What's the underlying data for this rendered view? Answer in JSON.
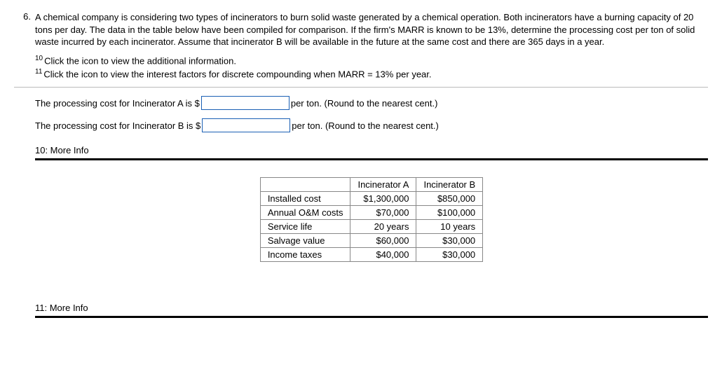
{
  "question": {
    "number": "6.",
    "text": "A chemical company is considering two types of incinerators to burn solid waste generated by a chemical operation. Both incinerators have a burning capacity of 20 tons per day. The data in the table below have been compiled for comparison. If the firm's MARR is known to be 13%, determine the processing cost per ton of solid waste incurred by each incinerator. Assume that incinerator B will be available in the future at the same cost and there are 365 days in a year."
  },
  "footnotes": {
    "f10": "Click the icon to view the additional information.",
    "f11": "Click the icon to view the interest factors for discrete compounding when MARR = 13% per year."
  },
  "inputs": {
    "lineA_pre": "The processing cost for Incinerator A is $",
    "lineA_post": " per ton. (Round to the nearest cent.)",
    "lineB_pre": "The processing cost for Incinerator B is $",
    "lineB_post": " per ton. (Round to the nearest cent.)"
  },
  "sections": {
    "s10": "10: More Info",
    "s11": "11: More Info"
  },
  "table": {
    "headers": [
      "",
      "Incinerator A",
      "Incinerator B"
    ],
    "rows": [
      [
        "Installed cost",
        "$1,300,000",
        "$850,000"
      ],
      [
        "Annual O&M costs",
        "$70,000",
        "$100,000"
      ],
      [
        "Service life",
        "20 years",
        "10 years"
      ],
      [
        "Salvage value",
        "$60,000",
        "$30,000"
      ],
      [
        "Income taxes",
        "$40,000",
        "$30,000"
      ]
    ]
  }
}
